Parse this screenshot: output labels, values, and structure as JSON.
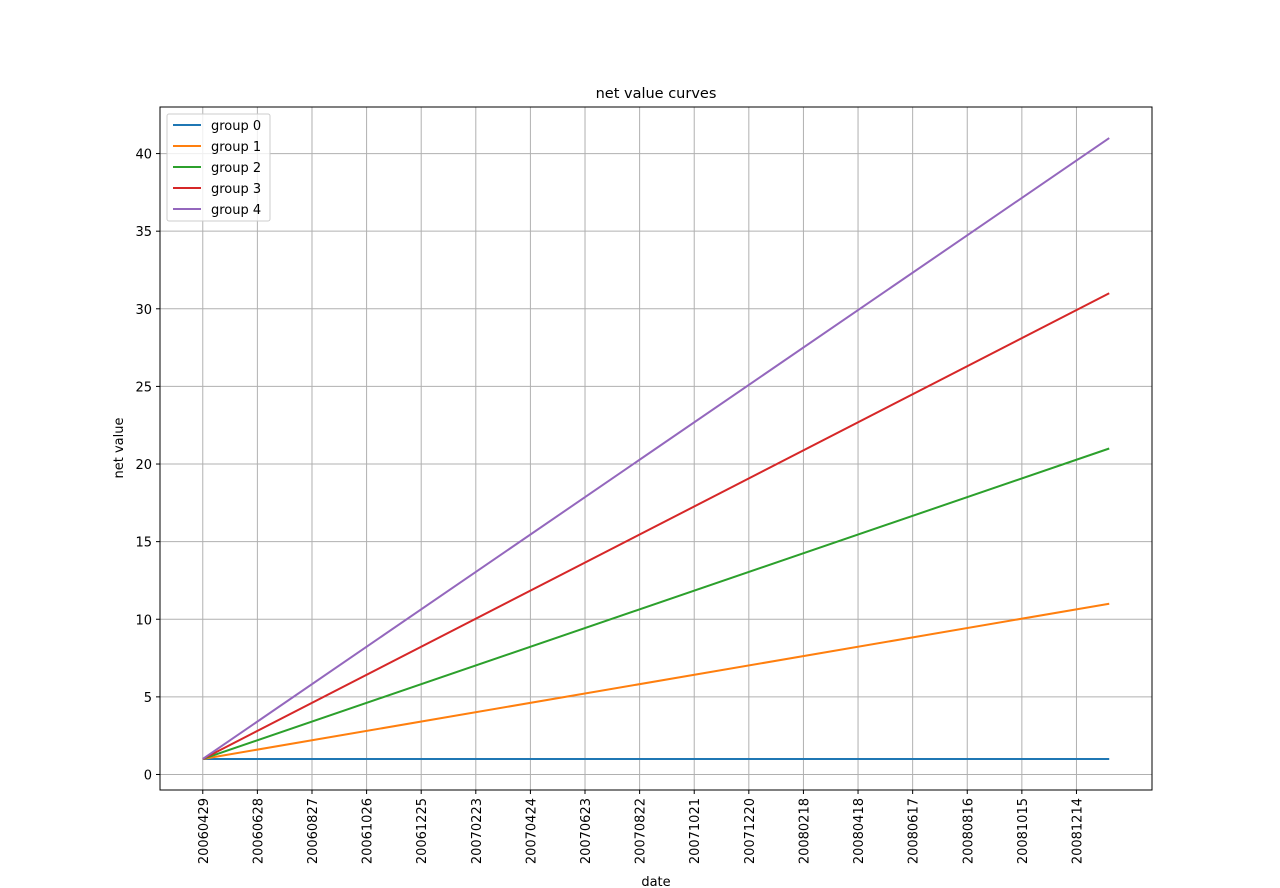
{
  "chart_data": {
    "type": "line",
    "title": "net value curves",
    "x_label": "date",
    "y_label": "net value",
    "x": [
      "20060429",
      "20090119"
    ],
    "series": [
      {
        "name": "group 0",
        "color": "#1f77b4",
        "values": [
          1,
          1
        ]
      },
      {
        "name": "group 1",
        "color": "#ff7f0e",
        "values": [
          1,
          11
        ]
      },
      {
        "name": "group 2",
        "color": "#2ca02c",
        "values": [
          1,
          21
        ]
      },
      {
        "name": "group 3",
        "color": "#d62728",
        "values": [
          1,
          31
        ]
      },
      {
        "name": "group 4",
        "color": "#9467bd",
        "values": [
          1,
          41
        ]
      }
    ],
    "xlim": [
      "20060313",
      "20090307"
    ],
    "xticks": [
      "20060429",
      "20060628",
      "20060827",
      "20061026",
      "20061225",
      "20070223",
      "20070424",
      "20070623",
      "20070822",
      "20071021",
      "20071220",
      "20080218",
      "20080418",
      "20080617",
      "20080816",
      "20081015",
      "20081214"
    ],
    "ylim": [
      -1,
      43
    ],
    "yticks": [
      0,
      5,
      10,
      15,
      20,
      25,
      30,
      35,
      40
    ],
    "grid": true,
    "legend": "upper left"
  }
}
